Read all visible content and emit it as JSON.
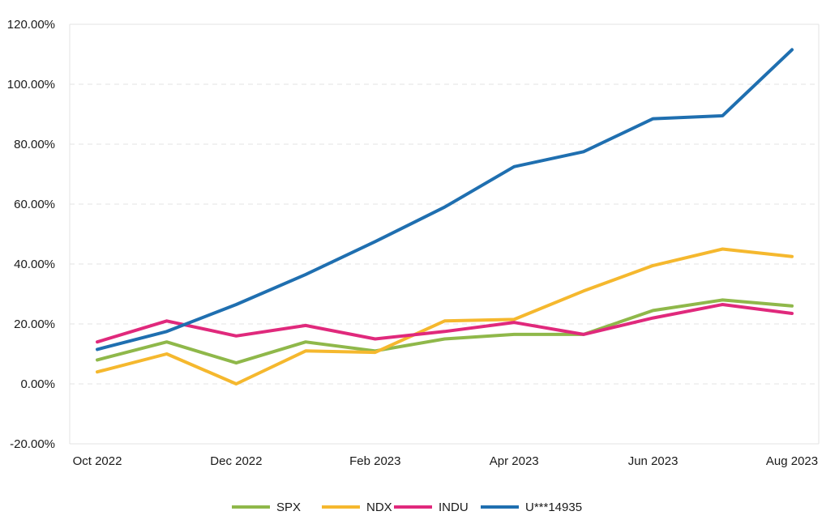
{
  "chart_data": {
    "type": "line",
    "x": [
      "Oct 2022",
      "Nov 2022",
      "Dec 2022",
      "Jan 2023",
      "Feb 2023",
      "Mar 2023",
      "Apr 2023",
      "May 2023",
      "Jun 2023",
      "Jul 2023",
      "Aug 2023"
    ],
    "x_tick_labels": [
      "Oct 2022",
      "Dec 2022",
      "Feb 2023",
      "Apr 2023",
      "Jun 2023",
      "Aug 2023"
    ],
    "y_tick_labels": [
      "-20.00%",
      "0.00%",
      "20.00%",
      "40.00%",
      "60.00%",
      "80.00%",
      "100.00%",
      "120.00%"
    ],
    "ylim": [
      -20,
      120
    ],
    "y_unit": "%",
    "grid": true,
    "legend_position": "bottom",
    "series": [
      {
        "name": "SPX",
        "color": "#8fb84a",
        "values": [
          8,
          14,
          7,
          14,
          11,
          15,
          16.5,
          16.5,
          24.5,
          28,
          26
        ]
      },
      {
        "name": "NDX",
        "color": "#f5b82e",
        "values": [
          4,
          10,
          0,
          11,
          10.5,
          21,
          21.5,
          31,
          39.5,
          45,
          42.5
        ]
      },
      {
        "name": "INDU",
        "color": "#e0297c",
        "values": [
          14,
          21,
          16,
          19.5,
          15,
          17.5,
          20.5,
          16.5,
          22,
          26.5,
          23.5
        ]
      },
      {
        "name": "U***14935",
        "color": "#1f6fb0",
        "values": [
          11.5,
          17.5,
          26.5,
          36.5,
          47.5,
          59,
          72.5,
          77.5,
          88.5,
          89.5,
          111.5
        ]
      }
    ]
  }
}
